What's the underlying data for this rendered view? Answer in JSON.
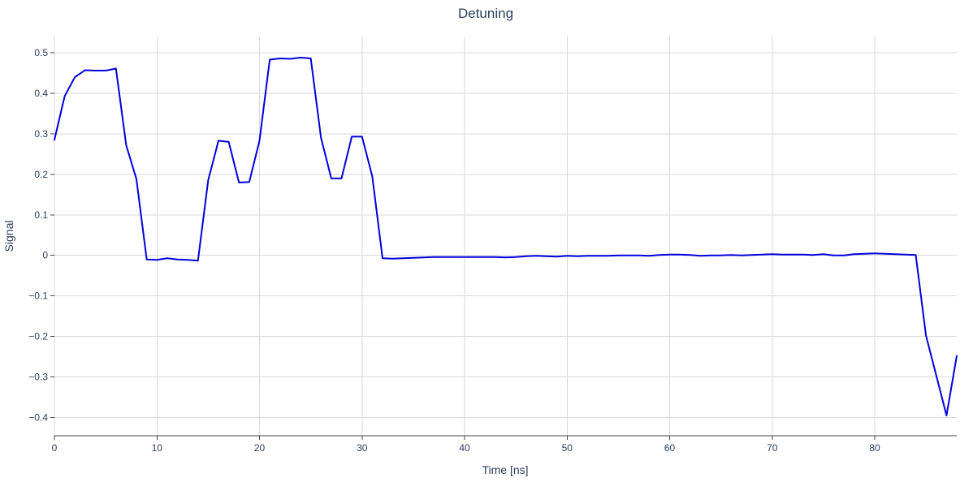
{
  "chart_data": {
    "type": "line",
    "title": "Detuning",
    "xlabel": "Time [ns]",
    "ylabel": "Signal",
    "xlim": [
      0,
      88
    ],
    "ylim": [
      -0.445,
      0.54
    ],
    "xticks": [
      0,
      10,
      20,
      30,
      40,
      50,
      60,
      70,
      80
    ],
    "xtick_labels": [
      "0",
      "10",
      "20",
      "30",
      "40",
      "50",
      "60",
      "70",
      "80"
    ],
    "yticks": [
      0.5,
      0.4,
      0.3,
      0.2,
      0.1,
      0,
      -0.1,
      -0.2,
      -0.3,
      -0.4
    ],
    "ytick_labels": [
      "0.5",
      "0.4",
      "0.3",
      "0.2",
      "0.1",
      "0",
      "−0.1",
      "−0.2",
      "−0.3",
      "−0.4"
    ],
    "grid": true,
    "colors": {
      "line": "#0000dd",
      "grid": "#d9d9d9",
      "text": "#2a3f5f",
      "axis": "#444444"
    },
    "series": [
      {
        "x": [
          0,
          1,
          2,
          3,
          4,
          5,
          6,
          7,
          8,
          9,
          10,
          11,
          12,
          13,
          14,
          15,
          16,
          17,
          18,
          19,
          20,
          21,
          22,
          23,
          24,
          25,
          26,
          27,
          28,
          29,
          30,
          31,
          32,
          33,
          34,
          35,
          36,
          37,
          38,
          39,
          40,
          41,
          42,
          43,
          44,
          45,
          46,
          47,
          48,
          49,
          50,
          51,
          52,
          53,
          54,
          55,
          56,
          57,
          58,
          59,
          60,
          61,
          62,
          63,
          64,
          65,
          66,
          67,
          68,
          69,
          70,
          71,
          72,
          73,
          74,
          75,
          76,
          77,
          78,
          79,
          80,
          81,
          82,
          83,
          84,
          85,
          86,
          87,
          88
        ],
        "y": [
          0.285,
          0.393,
          0.44,
          0.457,
          0.456,
          0.456,
          0.461,
          0.272,
          0.188,
          -0.01,
          -0.011,
          -0.007,
          -0.01,
          -0.011,
          -0.013,
          0.186,
          0.283,
          0.28,
          0.18,
          0.181,
          0.283,
          0.483,
          0.486,
          0.485,
          0.488,
          0.486,
          0.29,
          0.19,
          0.19,
          0.293,
          0.293,
          0.195,
          -0.007,
          -0.008,
          -0.007,
          -0.006,
          -0.005,
          -0.004,
          -0.004,
          -0.004,
          -0.004,
          -0.004,
          -0.004,
          -0.004,
          -0.005,
          -0.004,
          -0.002,
          -0.001,
          -0.002,
          -0.003,
          -0.001,
          -0.002,
          -0.001,
          -0.001,
          -0.001,
          0.0,
          0.0,
          0.0,
          -0.001,
          0.001,
          0.002,
          0.002,
          0.001,
          -0.001,
          0.0,
          0.0,
          0.001,
          0.0,
          0.001,
          0.002,
          0.003,
          0.002,
          0.002,
          0.002,
          0.001,
          0.003,
          0.0,
          0.0,
          0.003,
          0.004,
          0.005,
          0.004,
          0.003,
          0.002,
          0.001,
          -0.198,
          -0.296,
          -0.395,
          -0.248
        ]
      }
    ]
  }
}
